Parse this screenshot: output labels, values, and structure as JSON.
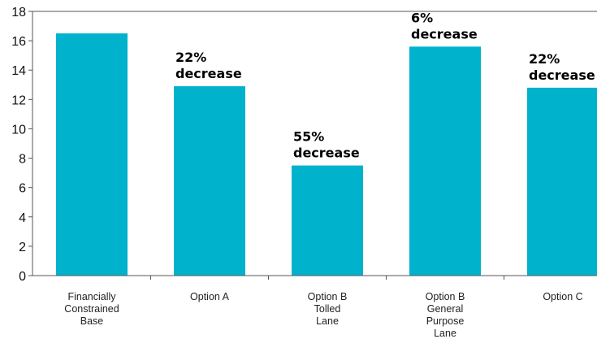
{
  "chart_data": {
    "type": "bar",
    "categories": [
      [
        "Financially",
        "Constrained",
        "Base"
      ],
      [
        "Option A"
      ],
      [
        "Option B",
        "Tolled",
        "Lane"
      ],
      [
        "Option B",
        "General",
        "Purpose",
        "Lane"
      ],
      [
        "Option C"
      ]
    ],
    "values": [
      16.5,
      12.9,
      7.5,
      15.6,
      12.8
    ],
    "annotations": [
      null,
      [
        "22%",
        "decrease"
      ],
      [
        "55%",
        "decrease"
      ],
      [
        "6%",
        "decrease"
      ],
      [
        "22%",
        "decrease"
      ]
    ],
    "yticks": [
      "0",
      "2",
      "4",
      "6",
      "8",
      "10",
      "12",
      "14",
      "16",
      "18"
    ],
    "ylim": [
      0,
      18
    ],
    "title": "",
    "xlabel": "",
    "ylabel": "",
    "grid": false,
    "bar_color": "#00b2cc",
    "axis_color": "#555555"
  }
}
